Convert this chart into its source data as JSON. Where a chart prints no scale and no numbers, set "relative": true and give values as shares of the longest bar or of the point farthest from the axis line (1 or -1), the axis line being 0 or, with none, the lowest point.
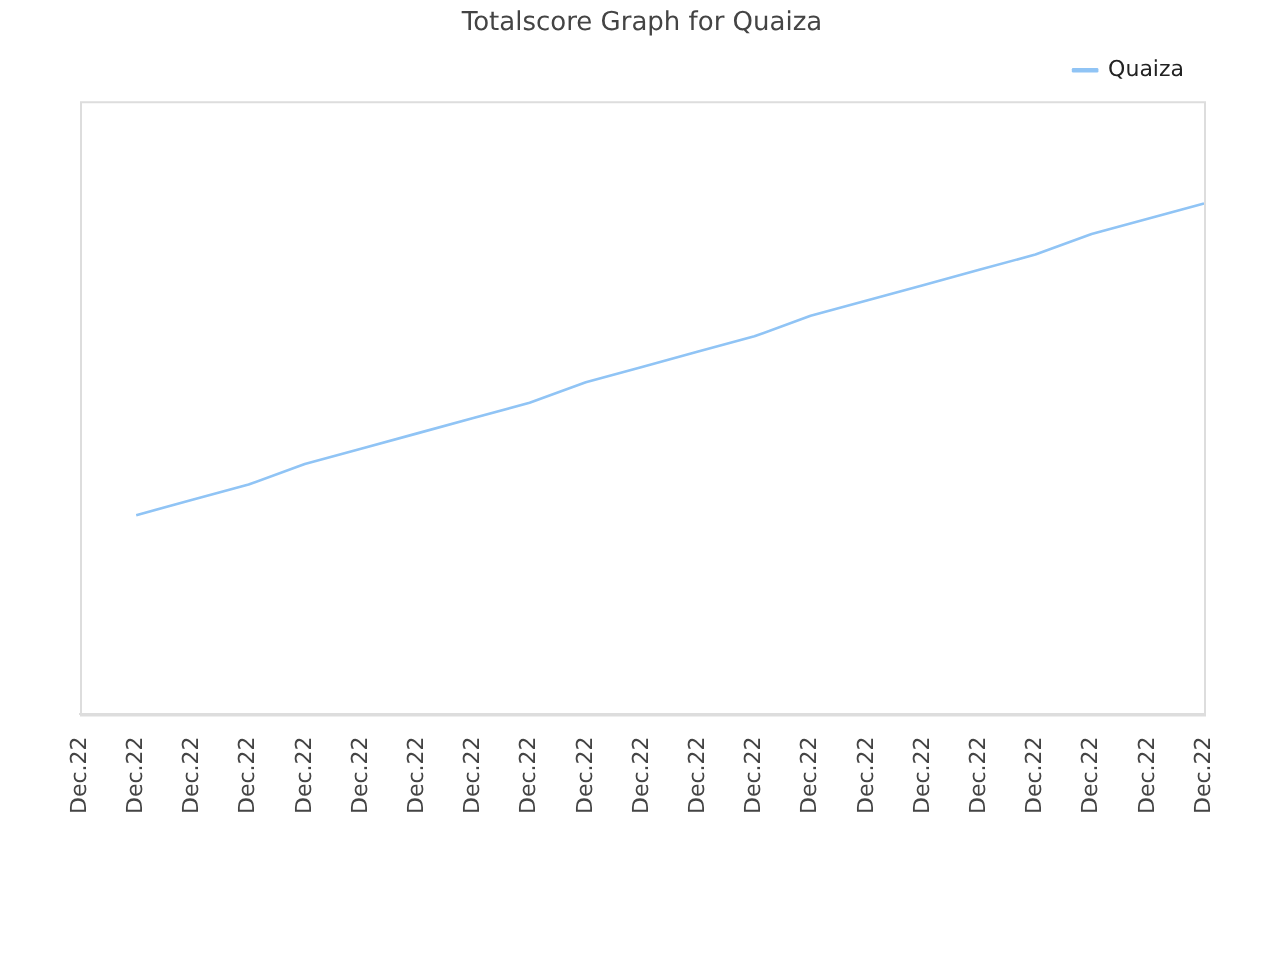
{
  "chart_data": {
    "type": "line",
    "title": "Totalscore Graph for Quaiza",
    "relative": true,
    "categories": [
      "Dec.22",
      "Dec.22",
      "Dec.22",
      "Dec.22",
      "Dec.22",
      "Dec.22",
      "Dec.22",
      "Dec.22",
      "Dec.22",
      "Dec.22",
      "Dec.22",
      "Dec.22",
      "Dec.22",
      "Dec.22",
      "Dec.22",
      "Dec.22",
      "Dec.22",
      "Dec.22",
      "Dec.22",
      "Dec.22",
      "Dec.22"
    ],
    "series": [
      {
        "name": "Quaiza",
        "color": "#90c4f5",
        "values": [
          null,
          0.39,
          0.42,
          0.45,
          0.49,
          0.52,
          0.55,
          0.58,
          0.61,
          0.65,
          0.68,
          0.71,
          0.74,
          0.78,
          0.81,
          0.84,
          0.87,
          0.9,
          0.94,
          0.97,
          1.0
        ]
      }
    ],
    "legend": "top right",
    "marker": "none",
    "line_style": "solid"
  }
}
